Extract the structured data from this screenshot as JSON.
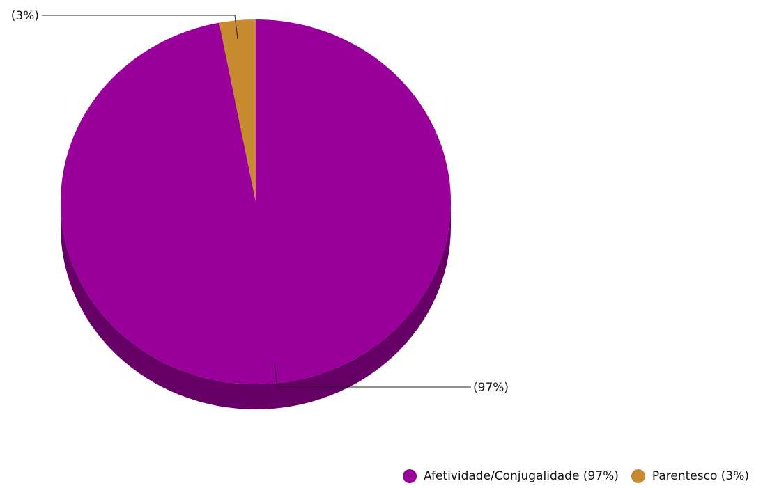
{
  "chart_data": {
    "type": "pie",
    "style": "3d",
    "slices": [
      {
        "name": "Afetividade/Conjugalidade",
        "value": 97,
        "label": "(97%)",
        "legend": "Afetividade/Conjugalidade (97%)",
        "color": "#990099",
        "side_color": "#660066"
      },
      {
        "name": "Parentesco",
        "value": 3,
        "label": "(3%)",
        "legend": "Parentesco (3%)",
        "color": "#C78A2E",
        "side_color": "#8A5E1E"
      }
    ],
    "legend_position": "bottom-right"
  }
}
